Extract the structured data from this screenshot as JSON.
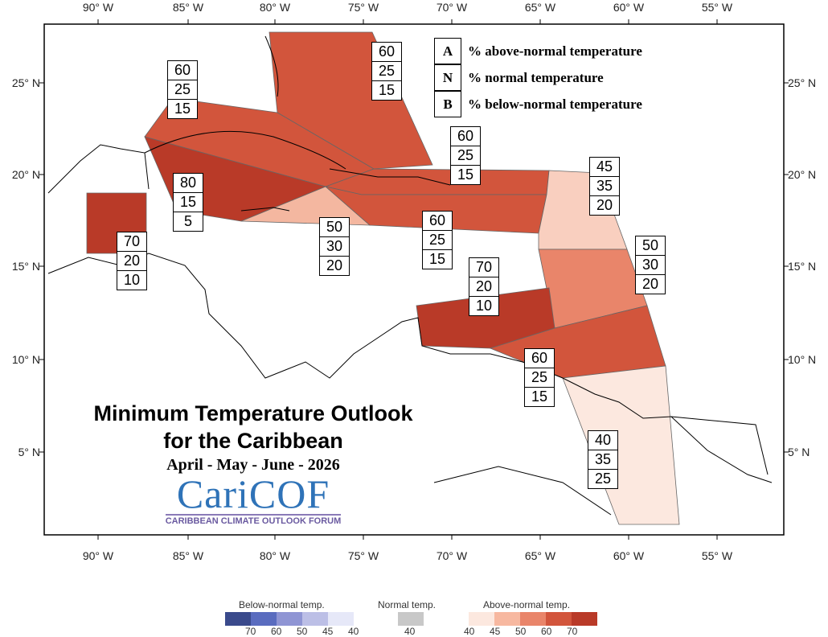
{
  "title": {
    "line1": "Minimum Temperature Outlook",
    "line2": "for the Caribbean",
    "period": "April - May - June - 2026"
  },
  "logo": {
    "name": "CariCOF",
    "subtitle": "CARIBBEAN CLIMATE OUTLOOK FORUM"
  },
  "axes": {
    "x_ticks": [
      "90° W",
      "85° W",
      "80° W",
      "75° W",
      "70° W",
      "65° W",
      "60° W",
      "55° W"
    ],
    "y_ticks": [
      "25° N",
      "20° N",
      "15° N",
      "10° N",
      "5° N"
    ]
  },
  "key": [
    {
      "letter": "A",
      "text": "% above-normal temperature"
    },
    {
      "letter": "N",
      "text": "% normal temperature"
    },
    {
      "letter": "B",
      "text": "% below-normal temperature"
    }
  ],
  "regions": [
    {
      "id": "bahamas",
      "A": "60",
      "N": "25",
      "B": "15",
      "color": "#d2553c"
    },
    {
      "id": "cuba",
      "A": "60",
      "N": "25",
      "B": "15",
      "color": "#d2553c"
    },
    {
      "id": "hispaniola",
      "A": "60",
      "N": "25",
      "B": "15",
      "color": "#d2553c"
    },
    {
      "id": "cayman-west",
      "A": "80",
      "N": "15",
      "B": "5",
      "color": "#b93a28"
    },
    {
      "id": "belize",
      "A": "70",
      "N": "20",
      "B": "10",
      "color": "#b93a28"
    },
    {
      "id": "jamaica",
      "A": "50",
      "N": "30",
      "B": "20",
      "color": "#f4b7a0"
    },
    {
      "id": "puerto-rico",
      "A": "60",
      "N": "25",
      "B": "15",
      "color": "#d2553c"
    },
    {
      "id": "leeward",
      "A": "45",
      "N": "35",
      "B": "20",
      "color": "#f9cfbf"
    },
    {
      "id": "windward",
      "A": "50",
      "N": "30",
      "B": "20",
      "color": "#e9856a"
    },
    {
      "id": "abc-islands",
      "A": "70",
      "N": "20",
      "B": "10",
      "color": "#b93a28"
    },
    {
      "id": "trinidad",
      "A": "60",
      "N": "25",
      "B": "15",
      "color": "#d2553c"
    },
    {
      "id": "guianas",
      "A": "40",
      "N": "35",
      "B": "25",
      "color": "#fce8df"
    }
  ],
  "legend": {
    "below": {
      "label": "Below-normal temp.",
      "colors": [
        "#3a4a8c",
        "#5a6cbf",
        "#8f95d4",
        "#bcbfe6",
        "#e6e8f8"
      ],
      "values": [
        "70",
        "60",
        "50",
        "45",
        "40"
      ]
    },
    "normal": {
      "label": "Normal temp.",
      "colors": [
        "#c8c8c8"
      ],
      "values": [
        "40"
      ]
    },
    "above": {
      "label": "Above-normal temp.",
      "colors": [
        "#fce8df",
        "#f7b8a0",
        "#e9856a",
        "#d2553c",
        "#b93a28"
      ],
      "values": [
        "40",
        "45",
        "50",
        "60",
        "70"
      ]
    }
  }
}
